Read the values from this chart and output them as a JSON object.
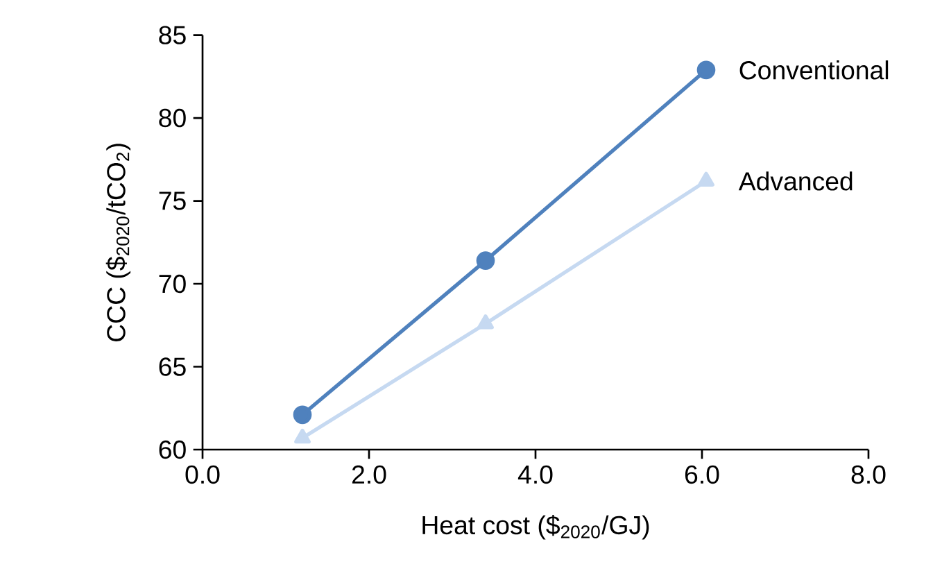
{
  "chart_data": {
    "type": "line",
    "xlabel": "Heat cost ($$_{2020}$/GJ)",
    "ylabel": "CCC ($$_{2020}$/tCO$_{2}$)",
    "x": [
      1.2,
      3.4,
      6.05
    ],
    "series": [
      {
        "name": "Conventional",
        "color": "#4f81bd",
        "marker": "circle",
        "values": [
          62.1,
          71.4,
          82.9
        ]
      },
      {
        "name": "Advanced",
        "color": "#c6d9f1",
        "marker": "triangle",
        "values": [
          60.7,
          67.6,
          76.2
        ]
      }
    ],
    "xlim": [
      0,
      8
    ],
    "xticks": [
      {
        "value": 0,
        "label": "0.0"
      },
      {
        "value": 2,
        "label": "2.0"
      },
      {
        "value": 4,
        "label": "4.0"
      },
      {
        "value": 6,
        "label": "6.0"
      },
      {
        "value": 8,
        "label": "8.0"
      }
    ],
    "ylim": [
      60,
      85
    ],
    "yticks": [
      60,
      65,
      70,
      75,
      80,
      85
    ],
    "grid": false,
    "legend": false,
    "line_style": "solid"
  }
}
